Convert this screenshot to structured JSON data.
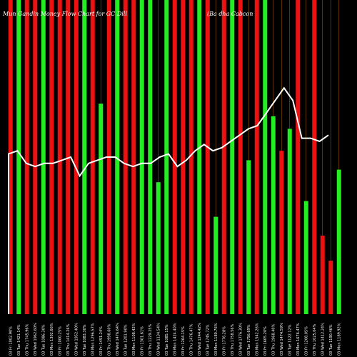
{
  "chart_data": {
    "type": "bar",
    "title_left": "Mun Gandin Money Flow Chart for GC Dill",
    "title_right": "(Ba dha Cabcon",
    "x_tick_labels": [
      "03 Fri 1002.90%",
      "03 Tue 1421.14%",
      "03 Thu 1745.96%",
      "03 Wed 1962.60%",
      "03 Tue 1086.30%",
      "03 Mon 1302.66%",
      "03 Fri 1000.25%",
      "03 Thu 1414.26%",
      "03 Wed 1952.40%",
      "03 Tue 1083.30%",
      "03 Mon 1296.57%",
      "03 Fri 1491.24%",
      "03 Thu 1998.60%",
      "03 Wed 1476.64%",
      "03 Tue 1201.90%",
      "03 Mon 1108.42%",
      "03 Fri 1301.61%",
      "03 Thu 1229.25%",
      "03 Wed 1134.54%",
      "03 Tue 1085.15%",
      "03 Mon 1424.40%",
      "03 Fri 1264.15%",
      "03 Thu 1476.47%",
      "03 Wed 1244.42%",
      "03 Tue 1745.72%",
      "03 Mon 1180.76%",
      "03 Fri 1776.28%",
      "03 Thu 1758.56%",
      "03 Wed 1776.30%",
      "03 Tue 1756.69%",
      "03 Mon 1542.26%",
      "03 Fri 1605.20%",
      "03 Thu 1968.40%",
      "03 Wed 1474.59%",
      "03 Tue 1122.12%",
      "03 Mon 1676.47%",
      "03 Fri 1208.05%",
      "03 Thu 1025.04%",
      "03 Wed 1412.24%",
      "03 Tue 1190.46%",
      "03 Mon 1189.92%"
    ],
    "bar_colors": [
      "red",
      "green",
      "red",
      "red",
      "green",
      "red",
      "red",
      "red",
      "red",
      "green",
      "red",
      "green",
      "red",
      "green",
      "red",
      "red",
      "green",
      "green",
      "green",
      "green",
      "red",
      "red",
      "red",
      "green",
      "red",
      "green",
      "red",
      "green",
      "red",
      "green",
      "red",
      "green",
      "green",
      "red",
      "green",
      "red",
      "green",
      "red",
      "red",
      "red",
      "green"
    ],
    "bar_values": [
      100,
      100,
      100,
      100,
      100,
      100,
      100,
      100,
      100,
      100,
      100,
      67,
      100,
      100,
      100,
      100,
      100,
      100,
      42,
      100,
      100,
      100,
      100,
      100,
      100,
      31,
      100,
      100,
      100,
      49,
      100,
      100,
      63,
      52,
      59,
      100,
      36,
      100,
      25,
      17,
      46
    ],
    "line_values": [
      51,
      52,
      48,
      47,
      48,
      48,
      49,
      50,
      44,
      48,
      49,
      50,
      50,
      48,
      47,
      48,
      48,
      50,
      51,
      47,
      49,
      52,
      54,
      52,
      53,
      55,
      57,
      59,
      60,
      64,
      68,
      72,
      68,
      56,
      56,
      55,
      57
    ],
    "ylim": [
      0,
      100
    ],
    "grid": false,
    "colors": {
      "background": "#000000",
      "green": "#22ee22",
      "red": "#ee1111",
      "line": "#ffffff",
      "divider": "#9a5a00",
      "text": "#ffffff"
    }
  }
}
